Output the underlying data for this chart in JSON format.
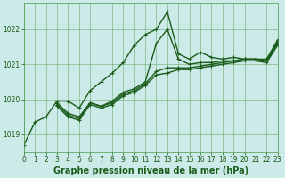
{
  "series": [
    {
      "x": [
        0,
        1,
        2,
        3,
        4,
        5,
        6,
        7,
        8,
        9,
        10,
        11,
        12,
        13,
        14,
        15,
        16,
        17,
        18,
        19,
        20,
        21,
        22,
        23
      ],
      "y": [
        1018.7,
        1019.35,
        1019.5,
        1019.95,
        1019.95,
        1019.75,
        1020.25,
        1020.5,
        1020.75,
        1021.05,
        1021.55,
        1021.85,
        1022.0,
        1022.5,
        1021.3,
        1021.15,
        1021.35,
        1021.2,
        1021.15,
        1021.2,
        1021.15,
        1021.15,
        1021.15,
        1021.7
      ],
      "linewidth": 1.0,
      "marker": "+"
    },
    {
      "x": [
        3,
        4,
        5,
        6,
        7,
        8,
        9,
        10,
        11,
        12,
        13,
        14,
        15,
        16,
        17,
        18,
        19,
        20,
        21,
        22,
        23
      ],
      "y": [
        1019.9,
        1019.6,
        1019.5,
        1019.9,
        1019.8,
        1019.95,
        1020.2,
        1020.3,
        1020.5,
        1021.6,
        1022.0,
        1021.15,
        1021.0,
        1021.05,
        1021.05,
        1021.1,
        1021.1,
        1021.15,
        1021.15,
        1021.1,
        1021.65
      ],
      "linewidth": 1.0,
      "marker": "+"
    },
    {
      "x": [
        3,
        4,
        5,
        6,
        7,
        8,
        9,
        10,
        11,
        12,
        13,
        14,
        15,
        16,
        17,
        18,
        19,
        20,
        21,
        22,
        23
      ],
      "y": [
        1019.8,
        1019.5,
        1019.4,
        1019.85,
        1019.75,
        1019.85,
        1020.1,
        1020.2,
        1020.4,
        1020.7,
        1020.75,
        1020.85,
        1020.85,
        1020.9,
        1020.95,
        1021.0,
        1021.05,
        1021.1,
        1021.1,
        1021.05,
        1021.55
      ],
      "linewidth": 1.0,
      "marker": "+"
    },
    {
      "x": [
        3,
        4,
        5,
        6,
        7,
        8,
        9,
        10,
        11,
        12,
        13,
        14,
        15,
        16,
        17,
        18,
        19,
        20,
        21,
        22,
        23
      ],
      "y": [
        1019.85,
        1019.55,
        1019.45,
        1019.9,
        1019.8,
        1019.9,
        1020.15,
        1020.25,
        1020.45,
        1020.8,
        1020.9,
        1020.9,
        1020.9,
        1020.95,
        1021.0,
        1021.05,
        1021.1,
        1021.15,
        1021.15,
        1021.1,
        1021.6
      ],
      "linewidth": 1.0,
      "marker": "+"
    }
  ],
  "xlim": [
    0,
    23
  ],
  "ylim": [
    1018.5,
    1022.75
  ],
  "yticks": [
    1019,
    1020,
    1021,
    1022
  ],
  "xticks": [
    0,
    1,
    2,
    3,
    4,
    5,
    6,
    7,
    8,
    9,
    10,
    11,
    12,
    13,
    14,
    15,
    16,
    17,
    18,
    19,
    20,
    21,
    22,
    23
  ],
  "xlabel": "Graphe pression niveau de la mer (hPa)",
  "bg_color": "#cceae7",
  "grid_color": "#4d994d",
  "line_color": "#1a5c1a",
  "tick_label_fontsize": 5.5,
  "xlabel_fontsize": 7.0,
  "marker_size": 3.5
}
